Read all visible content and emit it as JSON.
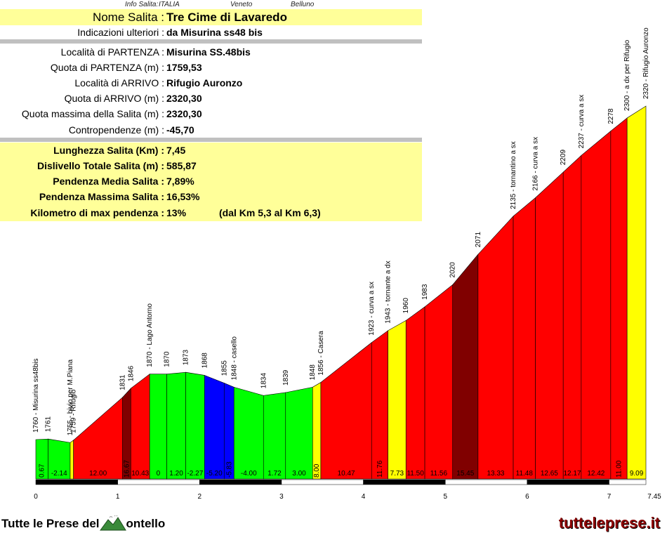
{
  "info_header": {
    "label": "Info Salita:",
    "country": "ITALIA",
    "region": "Veneto",
    "province": "Belluno"
  },
  "info_rows": [
    {
      "label": "Nome Salita :",
      "value": "Tre Cime di Lavaredo"
    },
    {
      "label": "Indicazioni ulteriori :",
      "value": "da Misurina ss48 bis"
    },
    {
      "label": "Località di PARTENZA :",
      "value": "Misurina SS.48bis"
    },
    {
      "label": "Quota di PARTENZA (m) :",
      "value": "1759,53"
    },
    {
      "label": "Località di ARRIVO :",
      "value": "Rifugio Auronzo"
    },
    {
      "label": "Quota di ARRIVO (m) :",
      "value": "2320,30"
    },
    {
      "label": "Quota massima della Salita (m) :",
      "value": "2320,30"
    },
    {
      "label": "Contropendenze (m) :",
      "value": "-45,70"
    },
    {
      "label": "Lunghezza Salita (Km) :",
      "value": "7,45"
    },
    {
      "label": "Dislivello Totale Salita (m) :",
      "value": "585,87"
    },
    {
      "label": "Pendenza Media Salita :",
      "value": "7,89%"
    },
    {
      "label": "Pendenza Massima Salita :",
      "value": "16,53%"
    },
    {
      "label": "Kilometro di max pendenza :",
      "value": "13%",
      "extra": "(dal Km 5,3 al Km 6,3)"
    }
  ],
  "chart_data": {
    "type": "area",
    "xlabel": "",
    "ylabel": "",
    "xlim": [
      0,
      7.45
    ],
    "x_ticks": [
      "0",
      "1",
      "2",
      "3",
      "4",
      "5",
      "6",
      "7",
      "7.45"
    ],
    "points": [
      {
        "x": 0.0,
        "alt": 1760,
        "label": "1760 - Misurina ss48bis"
      },
      {
        "x": 0.15,
        "alt": 1761,
        "label": "1761"
      },
      {
        "x": 0.42,
        "alt": 1755,
        "label": "1755 - bivio per M.Piana"
      },
      {
        "x": 0.46,
        "alt": 1759,
        "label": "1759 - Rifugio"
      },
      {
        "x": 1.06,
        "alt": 1831,
        "label": "1831"
      },
      {
        "x": 1.16,
        "alt": 1846,
        "label": "1846"
      },
      {
        "x": 1.39,
        "alt": 1870,
        "label": "1870 - Lago Antorno"
      },
      {
        "x": 1.6,
        "alt": 1870,
        "label": "1870"
      },
      {
        "x": 1.83,
        "alt": 1873,
        "label": "1873"
      },
      {
        "x": 2.06,
        "alt": 1868,
        "label": "1868"
      },
      {
        "x": 2.3,
        "alt": 1855,
        "label": "1855"
      },
      {
        "x": 2.42,
        "alt": 1848,
        "label": "1848 - casello"
      },
      {
        "x": 2.78,
        "alt": 1834,
        "label": "1834"
      },
      {
        "x": 3.05,
        "alt": 1839,
        "label": "1839"
      },
      {
        "x": 3.38,
        "alt": 1848,
        "label": "1848"
      },
      {
        "x": 3.48,
        "alt": 1856,
        "label": "1856 - Casera"
      },
      {
        "x": 4.1,
        "alt": 1923,
        "label": "1923 - curva a sx"
      },
      {
        "x": 4.3,
        "alt": 1943,
        "label": "1943 - tornante a dx"
      },
      {
        "x": 4.52,
        "alt": 1960,
        "label": "1960"
      },
      {
        "x": 4.75,
        "alt": 1983,
        "label": "1983"
      },
      {
        "x": 5.09,
        "alt": 2020,
        "label": "2020"
      },
      {
        "x": 5.4,
        "alt": 2071,
        "label": "2071"
      },
      {
        "x": 5.83,
        "alt": 2135,
        "label": "2135 - tornantino a sx"
      },
      {
        "x": 6.1,
        "alt": 2166,
        "label": "2166 - curva a sx"
      },
      {
        "x": 6.44,
        "alt": 2209,
        "label": "2209"
      },
      {
        "x": 6.66,
        "alt": 2237,
        "label": "2237 - curva a sx"
      },
      {
        "x": 7.02,
        "alt": 2278,
        "label": "2278"
      },
      {
        "x": 7.22,
        "alt": 2300,
        "label": "2300 - a dx per Rifugio"
      },
      {
        "x": 7.45,
        "alt": 2320,
        "label": "2320 - Rifugio Auronzo"
      }
    ],
    "segments": [
      {
        "grade": "0.67",
        "color": "#00ff00"
      },
      {
        "grade": "-2.14",
        "color": "#00ff00"
      },
      {
        "grade": "",
        "color": "#ffff00"
      },
      {
        "grade": "12.00",
        "color": "#ff0000"
      },
      {
        "grade": "16.67",
        "color": "#800000"
      },
      {
        "grade": "10.43",
        "color": "#ff0000"
      },
      {
        "grade": "0",
        "color": "#00ff00"
      },
      {
        "grade": "1.20",
        "color": "#00ff00"
      },
      {
        "grade": "-2.27",
        "color": "#00ff00"
      },
      {
        "grade": "-5.20",
        "color": "#0000ff"
      },
      {
        "grade": "-5.83",
        "color": "#0000ff"
      },
      {
        "grade": "-4.00",
        "color": "#00ff00"
      },
      {
        "grade": "1.72",
        "color": "#00ff00"
      },
      {
        "grade": "3.00",
        "color": "#00ff00"
      },
      {
        "grade": "8.00",
        "color": "#ffff00"
      },
      {
        "grade": "10.47",
        "color": "#ff0000"
      },
      {
        "grade": "11.76",
        "color": "#ff0000"
      },
      {
        "grade": "7.73",
        "color": "#ffff00"
      },
      {
        "grade": "11.50",
        "color": "#ff0000"
      },
      {
        "grade": "11.56",
        "color": "#ff0000"
      },
      {
        "grade": "15.45",
        "color": "#800000"
      },
      {
        "grade": "13.33",
        "color": "#ff0000"
      },
      {
        "grade": "11.48",
        "color": "#ff0000"
      },
      {
        "grade": "12.65",
        "color": "#ff0000"
      },
      {
        "grade": "12.17",
        "color": "#ff0000"
      },
      {
        "grade": "12.42",
        "color": "#ff0000"
      },
      {
        "grade": "11.00",
        "color": "#ff0000"
      },
      {
        "grade": "9.09",
        "color": "#ffff00"
      }
    ]
  },
  "footer": {
    "left_text_a": "Tutte le Prese del",
    "left_text_b": "ontello",
    "right_text": "tutteleprese.it"
  }
}
